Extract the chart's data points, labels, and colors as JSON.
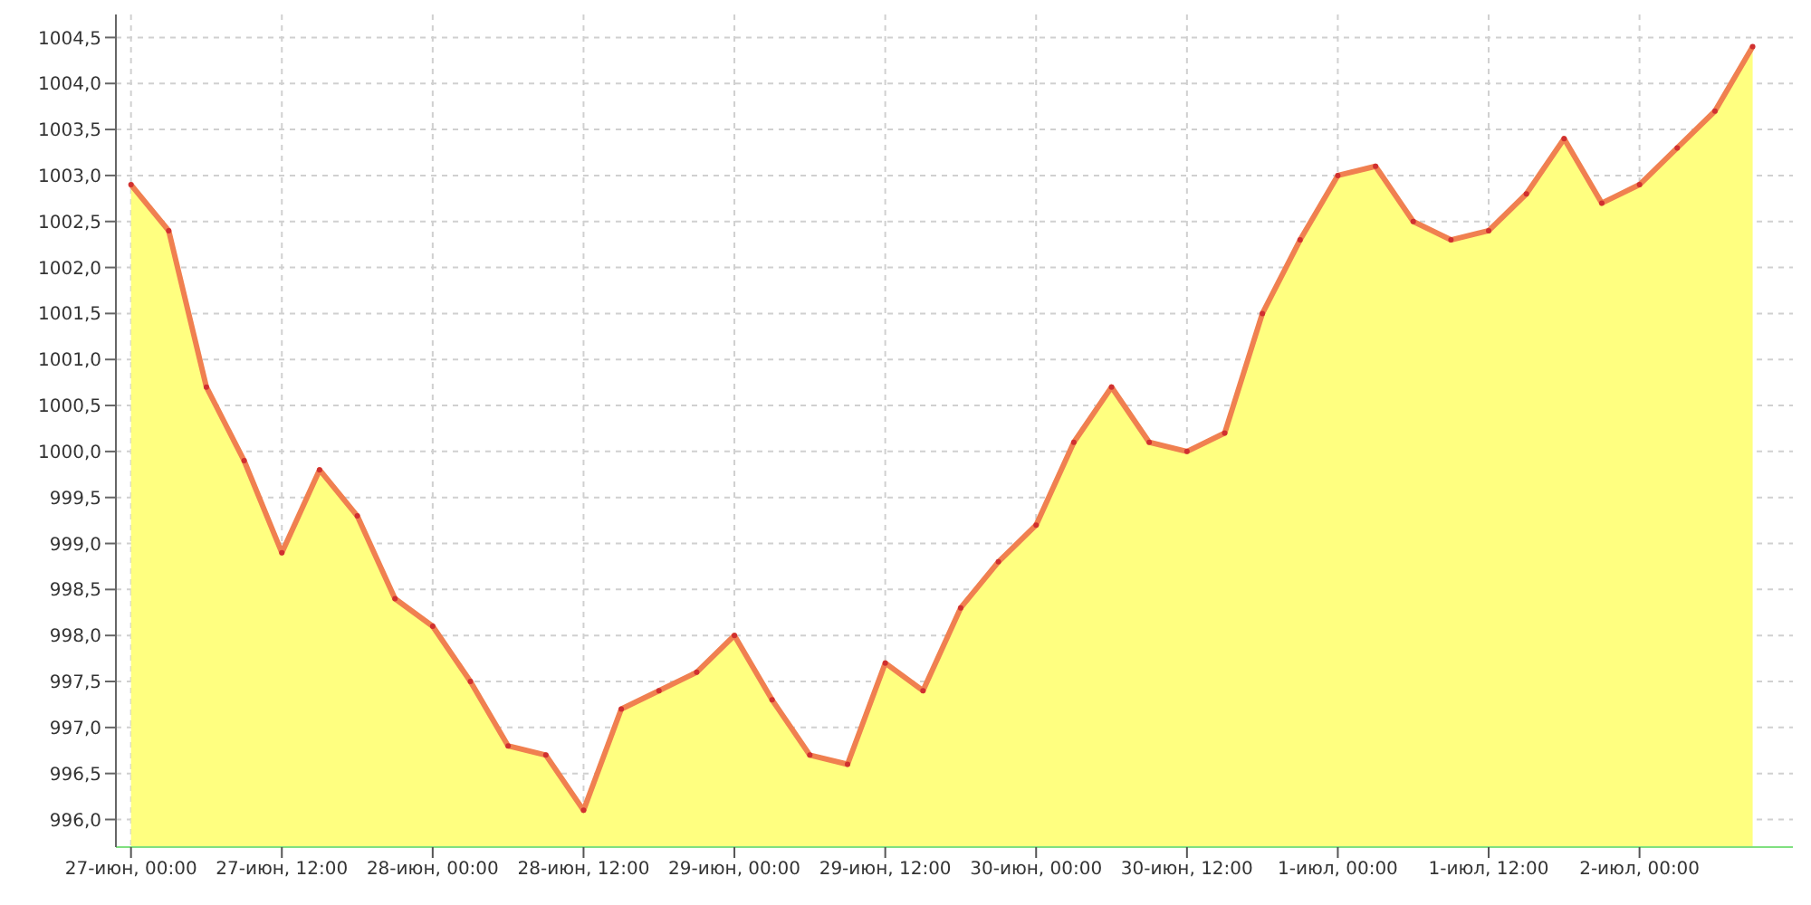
{
  "chart_data": {
    "type": "area",
    "x": [
      "--06-27T00:00",
      "--06-27T03:00",
      "--06-27T06:00",
      "--06-27T09:00",
      "--06-27T12:00",
      "--06-27T15:00",
      "--06-27T18:00",
      "--06-27T21:00",
      "--06-28T00:00",
      "--06-28T03:00",
      "--06-28T06:00",
      "--06-28T09:00",
      "--06-28T12:00",
      "--06-28T15:00",
      "--06-28T18:00",
      "--06-28T21:00",
      "--06-29T00:00",
      "--06-29T03:00",
      "--06-29T06:00",
      "--06-29T09:00",
      "--06-29T12:00",
      "--06-29T15:00",
      "--06-29T18:00",
      "--06-29T21:00",
      "--06-30T00:00",
      "--06-30T03:00",
      "--06-30T06:00",
      "--06-30T09:00",
      "--06-30T12:00",
      "--06-30T15:00",
      "--06-30T18:00",
      "--06-30T21:00",
      "--07-01T00:00",
      "--07-01T03:00",
      "--07-01T06:00",
      "--07-01T09:00",
      "--07-01T12:00",
      "--07-01T15:00",
      "--07-01T18:00",
      "--07-01T21:00",
      "--07-02T00:00",
      "--07-02T03:00",
      "--07-02T06:00",
      "--07-02T09:00"
    ],
    "series": [
      {
        "color": "#f08050",
        "values": [
          1002.9,
          1002.4,
          1000.7,
          999.9,
          998.9,
          999.8,
          999.3,
          998.4,
          998.1,
          997.5,
          996.8,
          996.7,
          996.1,
          997.2,
          997.4,
          997.6,
          998.0,
          997.3,
          996.7,
          996.6,
          997.7,
          997.4,
          998.3,
          998.8,
          999.2,
          1000.1,
          1000.7,
          1000.1,
          1000.0,
          1000.2,
          1001.5,
          1002.3,
          1003.0,
          1003.1,
          1002.5,
          1002.3,
          1002.4,
          1002.8,
          1003.4,
          1002.7,
          1002.9,
          1003.3,
          1003.7,
          1004.4
        ]
      }
    ],
    "xlim": [
      "--06-26T22:48",
      "--07-02T12:12"
    ],
    "xticks": [
      {
        "value": "--06-27T00:00",
        "label": "27-июн, 00:00"
      },
      {
        "value": "--06-27T12:00",
        "label": "27-июн, 12:00"
      },
      {
        "value": "--06-28T00:00",
        "label": "28-июн, 00:00"
      },
      {
        "value": "--06-28T12:00",
        "label": "28-июн, 12:00"
      },
      {
        "value": "--06-29T00:00",
        "label": "29-июн, 00:00"
      },
      {
        "value": "--06-29T12:00",
        "label": "29-июн, 12:00"
      },
      {
        "value": "--06-30T00:00",
        "label": "30-июн, 00:00"
      },
      {
        "value": "--06-30T12:00",
        "label": "30-июн, 12:00"
      },
      {
        "value": "--07-01T00:00",
        "label": "1-июл, 00:00"
      },
      {
        "value": "--07-01T12:00",
        "label": "1-июл, 12:00"
      },
      {
        "value": "--07-02T00:00",
        "label": "2-июл, 00:00"
      }
    ],
    "ylim": [
      995.7,
      1004.75
    ],
    "yticks": [
      {
        "value": 996,
        "label": "996,0"
      },
      {
        "value": 996.5,
        "label": "996,5"
      },
      {
        "value": 997,
        "label": "997,0"
      },
      {
        "value": 997.5,
        "label": "997,5"
      },
      {
        "value": 998,
        "label": "998,0"
      },
      {
        "value": 998.5,
        "label": "998,5"
      },
      {
        "value": 999,
        "label": "999,0"
      },
      {
        "value": 999.5,
        "label": "999,5"
      },
      {
        "value": 1000,
        "label": "1000,0"
      },
      {
        "value": 1000.5,
        "label": "1000,5"
      },
      {
        "value": 1001,
        "label": "1001,0"
      },
      {
        "value": 1001.5,
        "label": "1001,5"
      },
      {
        "value": 1002,
        "label": "1002,0"
      },
      {
        "value": 1002.5,
        "label": "1002,5"
      },
      {
        "value": 1003,
        "label": "1003,0"
      },
      {
        "value": 1003.5,
        "label": "1003,5"
      },
      {
        "value": 1004,
        "label": "1004,0"
      },
      {
        "value": 1004.5,
        "label": "1004,5"
      }
    ],
    "grid": true,
    "marker": "circle",
    "legend": false
  }
}
